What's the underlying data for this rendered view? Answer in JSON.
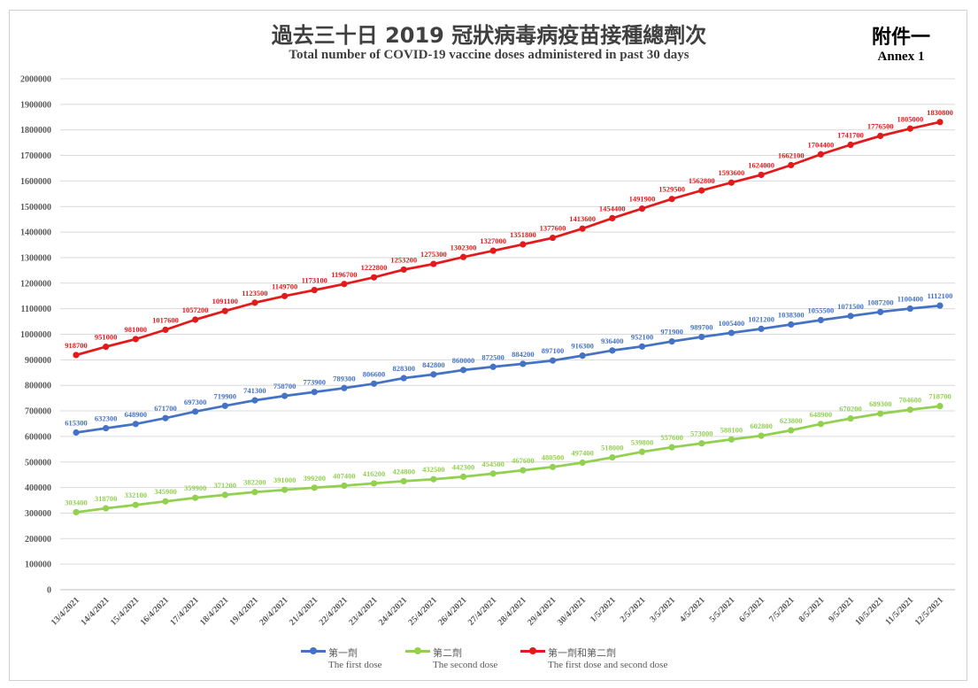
{
  "header": {
    "title_zh": "過去三十日 2019 冠狀病毒病疫苗接種總劑次",
    "title_en": "Total number of COVID-19 vaccine doses administered in past 30 days",
    "annex_zh": "附件一",
    "annex_en": "Annex 1"
  },
  "chart_data": {
    "type": "line",
    "title": "過去三十日 2019 冠狀病毒病疫苗接種總劑次",
    "subtitle": "Total number of COVID-19 vaccine doses administered in past 30 days",
    "xlabel": "",
    "ylabel": "",
    "ylim": [
      0,
      2000000
    ],
    "yticks": [
      "0",
      "100000",
      "200000",
      "300000",
      "400000",
      "500000",
      "600000",
      "700000",
      "800000",
      "900000",
      "1000000",
      "1100000",
      "1200000",
      "1300000",
      "1400000",
      "1500000",
      "1600000",
      "1700000",
      "1800000",
      "1900000",
      "2000000"
    ],
    "grid": true,
    "legend_position": "bottom",
    "categories": [
      "13/4/2021",
      "14/4/2021",
      "15/4/2021",
      "16/4/2021",
      "17/4/2021",
      "18/4/2021",
      "19/4/2021",
      "20/4/2021",
      "21/4/2021",
      "22/4/2021",
      "23/4/2021",
      "24/4/2021",
      "25/4/2021",
      "26/4/2021",
      "27/4/2021",
      "28/4/2021",
      "29/4/2021",
      "30/4/2021",
      "1/5/2021",
      "2/5/2021",
      "3/5/2021",
      "4/5/2021",
      "5/5/2021",
      "6/5/2021",
      "7/5/2021",
      "8/5/2021",
      "9/5/2021",
      "10/5/2021",
      "11/5/2021",
      "12/5/2021"
    ],
    "series": [
      {
        "name": "第一劑",
        "name_en": "The first dose",
        "color": "#4472C4",
        "values": [
          615300,
          632300,
          648900,
          671700,
          697300,
          719900,
          741300,
          758700,
          773900,
          789300,
          806600,
          828300,
          842800,
          860000,
          872500,
          884200,
          897100,
          916300,
          936400,
          952100,
          971900,
          989700,
          1005400,
          1021200,
          1038300,
          1055500,
          1071500,
          1087200,
          1100400,
          1112100
        ]
      },
      {
        "name": "第二劑",
        "name_en": "The second dose",
        "color": "#92D050",
        "values": [
          303400,
          318700,
          332100,
          345900,
          359900,
          371200,
          382200,
          391000,
          399200,
          407400,
          416200,
          424800,
          432500,
          442300,
          454500,
          467600,
          480500,
          497400,
          518000,
          539800,
          557600,
          573000,
          588100,
          602800,
          623800,
          648900,
          670200,
          689300,
          704600,
          718700
        ]
      },
      {
        "name": "第一劑和第二劑",
        "name_en": "The first dose and second dose",
        "color": "#E31A1C",
        "values": [
          918700,
          951000,
          981000,
          1017600,
          1057200,
          1091100,
          1123500,
          1149700,
          1173100,
          1196700,
          1222800,
          1253200,
          1275300,
          1302300,
          1327000,
          1351800,
          1377600,
          1413600,
          1454400,
          1491900,
          1529500,
          1562800,
          1593600,
          1624000,
          1662100,
          1704400,
          1741700,
          1776500,
          1805000,
          1830800
        ]
      }
    ]
  }
}
